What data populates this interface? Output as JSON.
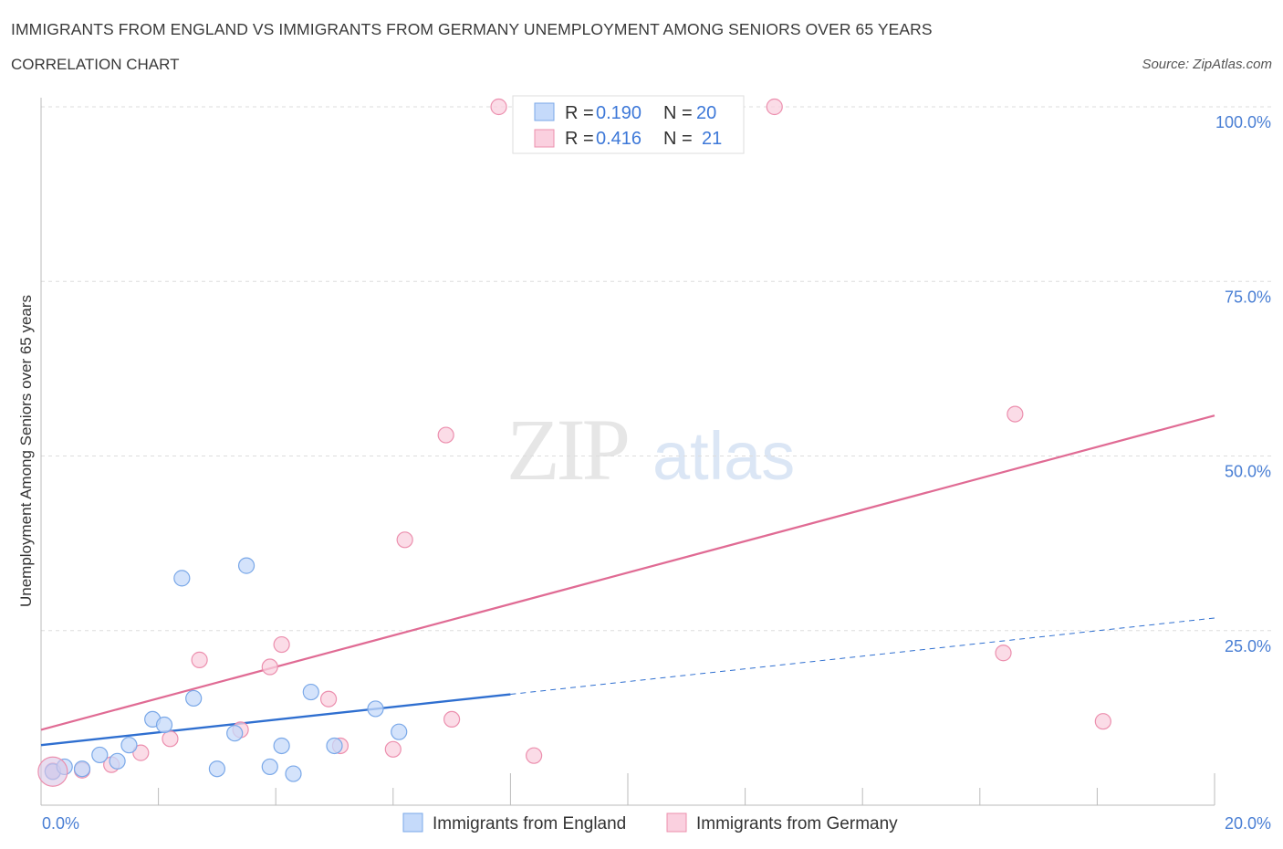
{
  "header": {
    "title": "IMMIGRANTS FROM ENGLAND VS IMMIGRANTS FROM GERMANY UNEMPLOYMENT AMONG SENIORS OVER 65 YEARS",
    "subtitle": "CORRELATION CHART",
    "source": "Source: ZipAtlas.com"
  },
  "watermark": {
    "zip": "ZIP",
    "atlas": "atlas"
  },
  "colors": {
    "england": "#7aa8e8",
    "england_fill": "#c5dafa",
    "england_line": "#2f6fd0",
    "germany": "#ec8fae",
    "germany_fill": "#fad0df",
    "germany_line": "#e06b94",
    "axis_text": "#4a7fd4",
    "grid": "#dddddd"
  },
  "legend_box": {
    "rows": [
      {
        "r_label": "R = ",
        "r_value": "0.190",
        "n_label": "N = ",
        "n_value": "20"
      },
      {
        "r_label": "R = ",
        "r_value": "0.416",
        "n_label": "N = ",
        "n_value": "21"
      }
    ]
  },
  "chart_data": {
    "type": "scatter",
    "title": "IMMIGRANTS FROM ENGLAND VS IMMIGRANTS FROM GERMANY UNEMPLOYMENT AMONG SENIORS OVER 65 YEARS",
    "xlabel": "",
    "ylabel": "Unemployment Among Seniors over 65 years",
    "xlim": [
      0,
      20
    ],
    "ylim": [
      0,
      100
    ],
    "x_tick_labels": [
      "0.0%",
      "20.0%"
    ],
    "y_tick_labels": [
      "25.0%",
      "50.0%",
      "75.0%",
      "100.0%"
    ],
    "y_ticks": [
      25,
      50,
      75,
      100
    ],
    "grid": true,
    "legend_position": "bottom-center",
    "series": [
      {
        "name": "Immigrants from England",
        "points": [
          [
            0.2,
            4.8
          ],
          [
            0.4,
            5.5
          ],
          [
            0.7,
            5.2
          ],
          [
            1.0,
            7.2
          ],
          [
            1.3,
            6.3
          ],
          [
            1.5,
            8.6
          ],
          [
            1.9,
            12.3
          ],
          [
            2.1,
            11.5
          ],
          [
            2.4,
            32.5
          ],
          [
            2.6,
            15.3
          ],
          [
            3.0,
            5.2
          ],
          [
            3.3,
            10.3
          ],
          [
            3.5,
            34.3
          ],
          [
            3.9,
            5.5
          ],
          [
            4.1,
            8.5
          ],
          [
            4.3,
            4.5
          ],
          [
            4.6,
            16.2
          ],
          [
            5.0,
            8.5
          ],
          [
            5.7,
            13.8
          ],
          [
            6.1,
            10.5
          ]
        ],
        "trend": {
          "solid_x": [
            0,
            8
          ],
          "dashed_x": [
            8,
            20
          ],
          "y_at_0": 8.6,
          "y_at_20": 26.8
        }
      },
      {
        "name": "Immigrants from Germany",
        "points": [
          [
            0.2,
            4.9
          ],
          [
            0.7,
            5.0
          ],
          [
            1.2,
            5.8
          ],
          [
            1.7,
            7.5
          ],
          [
            2.2,
            9.5
          ],
          [
            2.7,
            20.8
          ],
          [
            3.4,
            10.8
          ],
          [
            3.9,
            19.8
          ],
          [
            4.1,
            23.0
          ],
          [
            4.9,
            15.2
          ],
          [
            5.1,
            8.5
          ],
          [
            6.0,
            8.0
          ],
          [
            6.2,
            38.0
          ],
          [
            6.9,
            53.0
          ],
          [
            7.0,
            12.3
          ],
          [
            7.8,
            100.0
          ],
          [
            8.4,
            7.1
          ],
          [
            12.5,
            100.0
          ],
          [
            16.6,
            56.0
          ],
          [
            16.4,
            21.8
          ],
          [
            18.1,
            12.0
          ]
        ],
        "trend": {
          "solid_x": [
            0,
            20
          ],
          "y_at_0": 10.8,
          "y_at_20": 55.8
        }
      }
    ]
  },
  "bottom_legend": {
    "england": "Immigrants from England",
    "germany": "Immigrants from Germany"
  }
}
